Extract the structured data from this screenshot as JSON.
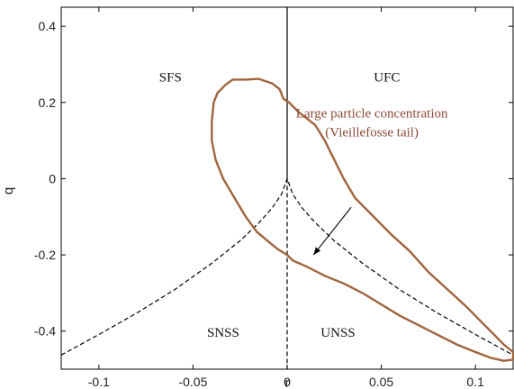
{
  "chart_data": {
    "type": "line",
    "xlabel": "r",
    "ylabel": "q",
    "xlim": [
      -0.12,
      0.12
    ],
    "ylim": [
      -0.5,
      0.45
    ],
    "x_ticks": [
      -0.1,
      -0.05,
      0,
      0.05,
      0.1
    ],
    "x_tick_labels": [
      "-0.1",
      "-0.05",
      "0",
      "0.05",
      "0.1"
    ],
    "y_ticks": [
      -0.4,
      -0.2,
      0,
      0.2,
      0.4
    ],
    "y_tick_labels": [
      "-0.4",
      "-0.2",
      "0",
      "0.2",
      "0.4"
    ],
    "grid": false,
    "colors": {
      "contour": "#a0643c",
      "annotation_text": "#8b4a36",
      "boundary": "#000000"
    },
    "region_labels": [
      {
        "text": "SFS",
        "x": -0.062,
        "y": 0.255
      },
      {
        "text": "UFC",
        "x": 0.053,
        "y": 0.255
      },
      {
        "text": "SNSS",
        "x": -0.034,
        "y": -0.415
      },
      {
        "text": "UNSS",
        "x": 0.027,
        "y": -0.415
      }
    ],
    "annotation": {
      "lines": [
        "Large particle concentration",
        "(Vieillefosse tail)"
      ],
      "arrow_from": [
        0.034,
        -0.075
      ],
      "arrow_to": [
        0.014,
        -0.2
      ]
    },
    "series": [
      {
        "style": "dashed",
        "x": [
          -0.12,
          -0.1,
          -0.08,
          -0.06,
          -0.04,
          -0.025,
          -0.015,
          -0.008,
          -0.003,
          0,
          0.003,
          0.008,
          0.015,
          0.025,
          0.04,
          0.06,
          0.08,
          0.1,
          0.12
        ],
        "y": [
          -0.463,
          -0.409,
          -0.353,
          -0.292,
          -0.222,
          -0.163,
          -0.116,
          -0.077,
          -0.041,
          0,
          -0.041,
          -0.077,
          -0.116,
          -0.163,
          -0.222,
          -0.292,
          -0.353,
          -0.409,
          -0.463
        ]
      },
      {
        "style": "dashed-vertical",
        "x": [
          0,
          0
        ],
        "y": [
          0,
          -0.5
        ]
      },
      {
        "style": "solid-vertical",
        "x": [
          0,
          0
        ],
        "y": [
          0,
          0.45
        ]
      },
      {
        "style": "contour",
        "x": [
          -0.022,
          -0.015,
          -0.008,
          -0.004,
          -0.002,
          0.001,
          0.003,
          0.006,
          0.01,
          0.015,
          0.02,
          0.025,
          0.03,
          0.036,
          0.045,
          0.055,
          0.065,
          0.075,
          0.085,
          0.095,
          0.103,
          0.11,
          0.115,
          0.12,
          0.12,
          0.115,
          0.108,
          0.1,
          0.09,
          0.08,
          0.07,
          0.06,
          0.05,
          0.04,
          0.03,
          0.02,
          0.01,
          0.003,
          0,
          -0.005,
          -0.01,
          -0.016,
          -0.022,
          -0.028,
          -0.034,
          -0.038,
          -0.04,
          -0.04,
          -0.039,
          -0.037,
          -0.036,
          -0.033,
          -0.029,
          -0.022
        ],
        "y": [
          0.26,
          0.262,
          0.25,
          0.235,
          0.21,
          0.2,
          0.19,
          0.175,
          0.16,
          0.14,
          0.1,
          0.05,
          0.0,
          -0.05,
          -0.095,
          -0.145,
          -0.19,
          -0.245,
          -0.29,
          -0.335,
          -0.375,
          -0.41,
          -0.435,
          -0.455,
          -0.475,
          -0.478,
          -0.47,
          -0.455,
          -0.435,
          -0.41,
          -0.385,
          -0.36,
          -0.33,
          -0.3,
          -0.275,
          -0.255,
          -0.23,
          -0.215,
          -0.2,
          -0.185,
          -0.165,
          -0.14,
          -0.1,
          -0.05,
          0.0,
          0.05,
          0.1,
          0.15,
          0.2,
          0.225,
          0.23,
          0.245,
          0.26,
          0.26
        ]
      }
    ]
  }
}
